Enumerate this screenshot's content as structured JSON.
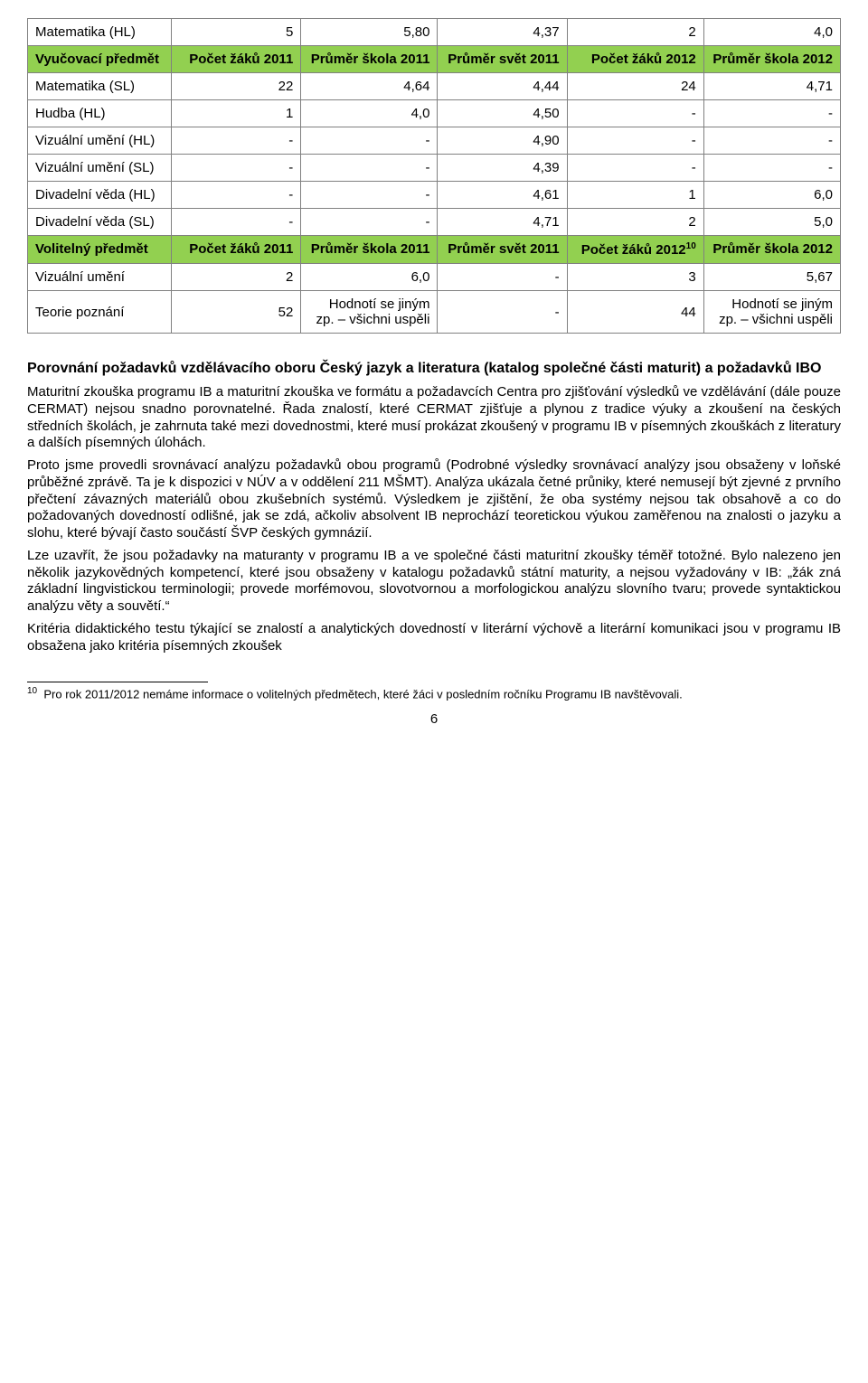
{
  "table": {
    "background_color": "#92d050",
    "border_color": "#808080",
    "row0": {
      "label": "Matematika (HL)",
      "v1": "5",
      "v2": "5,80",
      "v3": "4,37",
      "v4": "2",
      "v5": "4,0"
    },
    "hdr1": {
      "h0": "Vyučovací předmět",
      "h1": "Počet žáků 2011",
      "h2": "Průměr škola 2011",
      "h3": "Průměr svět 2011",
      "h4": "Počet žáků 2012",
      "h5": "Průměr škola 2012"
    },
    "row1": {
      "label": "Matematika (SL)",
      "v1": "22",
      "v2": "4,64",
      "v3": "4,44",
      "v4": "24",
      "v5": "4,71"
    },
    "row2": {
      "label": "Hudba (HL)",
      "v1": "1",
      "v2": "4,0",
      "v3": "4,50",
      "v4": "-",
      "v5": "-"
    },
    "row3": {
      "label": "Vizuální umění (HL)",
      "v1": "-",
      "v2": "-",
      "v3": "4,90",
      "v4": "-",
      "v5": "-"
    },
    "row4": {
      "label": "Vizuální umění (SL)",
      "v1": "-",
      "v2": "-",
      "v3": "4,39",
      "v4": "-",
      "v5": "-"
    },
    "row5": {
      "label": "Divadelní věda (HL)",
      "v1": "-",
      "v2": "-",
      "v3": "4,61",
      "v4": "1",
      "v5": "6,0"
    },
    "row6": {
      "label": "Divadelní věda (SL)",
      "v1": "-",
      "v2": "-",
      "v3": "4,71",
      "v4": "2",
      "v5": "5,0"
    },
    "hdr2": {
      "h0": "Volitelný předmět",
      "h1": "Počet žáků 2011",
      "h2": "Průměr škola 2011",
      "h3": "Průměr svět 2011",
      "h4a": "Počet žáků 2012",
      "h4sup": "10",
      "h5": "Průměr škola 2012"
    },
    "row7": {
      "label": "Vizuální umění",
      "v1": "2",
      "v2": "6,0",
      "v3": "-",
      "v4": "3",
      "v5": "5,67"
    },
    "row8": {
      "label": "Teorie poznání",
      "v1": "52",
      "v2": "Hodnotí se jiným zp. – všichni uspěli",
      "v3": "-",
      "v4": "44",
      "v5": "Hodnotí se jiným zp. – všichni uspěli"
    }
  },
  "section_title": "Porovnání požadavků vzdělávacího oboru Český jazyk a literatura (katalog společné části maturit) a požadavků IBO",
  "p1": "Maturitní zkouška programu IB a maturitní zkouška ve formátu a požadavcích Centra pro zjišťování výsledků ve vzdělávání (dále pouze CERMAT) nejsou snadno porovnatelné. Řada znalostí, které CERMAT zjišťuje a plynou z tradice výuky a zkoušení na českých středních školách, je zahrnuta také mezi dovednostmi, které musí prokázat zkoušený v programu IB v písemných zkouškách z literatury a dalších písemných úlohách.",
  "p2": "Proto jsme provedli srovnávací analýzu požadavků obou programů (Podrobné výsledky srovnávací analýzy jsou obsaženy v loňské průběžné zprávě. Ta je k dispozici v NÚV a v oddělení 211 MŠMT). Analýza ukázala četné průniky, které nemusejí být zjevné z prvního přečtení závazných materiálů obou zkušebních systémů. Výsledkem je zjištění, že oba systémy nejsou tak obsahově a co do požadovaných dovedností odlišné, jak se zdá, ačkoliv absolvent IB neprochází teoretickou výukou zaměřenou na znalosti o jazyku a slohu, které bývají často součástí ŠVP českých gymnázií.",
  "p3": "Lze uzavřít, že jsou požadavky na maturanty v programu IB a ve společné části maturitní zkoušky téměř totožné. Bylo nalezeno jen několik jazykovědných kompetencí, které jsou obsaženy v katalogu požadavků státní maturity, a nejsou vyžadovány v IB: „žák zná základní lingvistickou terminologii; provede morfémovou, slovotvornou a morfologickou analýzu slovního tvaru; provede syntaktickou analýzu věty a souvětí.“",
  "p4": "Kritéria didaktického testu týkající se znalostí a analytických dovedností v literární výchově a literární komunikaci jsou v programu IB obsažena jako kritéria písemných zkoušek",
  "footnote_num": "10",
  "footnote": "Pro rok 2011/2012 nemáme informace o volitelných předmětech, které žáci v posledním ročníku Programu IB navštěvovali.",
  "pagenum": "6"
}
